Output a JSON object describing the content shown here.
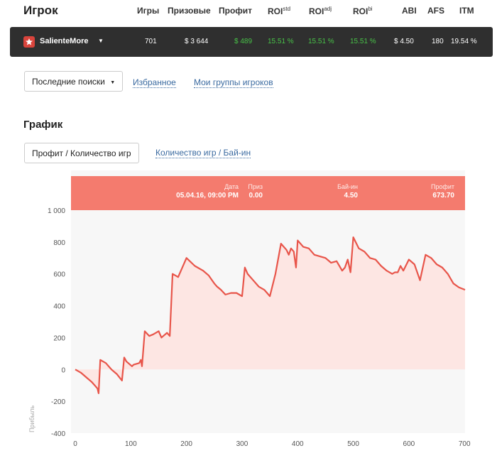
{
  "header": {
    "title": "Игрок",
    "columns": [
      {
        "label": "Игры",
        "sup": ""
      },
      {
        "label": "Призовые",
        "sup": ""
      },
      {
        "label": "Профит",
        "sup": ""
      },
      {
        "label": "ROI",
        "sup": "std"
      },
      {
        "label": "ROI",
        "sup": "adj"
      },
      {
        "label": "ROI",
        "sup": "bi"
      },
      {
        "label": "ABI",
        "sup": ""
      },
      {
        "label": "AFS",
        "sup": ""
      },
      {
        "label": "ITM",
        "sup": ""
      }
    ]
  },
  "player": {
    "name": "SalienteMore",
    "games": "701",
    "winnings": "$ 3 644",
    "profit": "$ 489",
    "roi_std": "15.51 %",
    "roi_adj": "15.51 %",
    "roi_bi": "15.51 %",
    "abi": "$ 4.50",
    "afs": "180",
    "itm": "19.54 %",
    "accent": "#48c248"
  },
  "search_tabs": {
    "recent": "Последние поиски",
    "favorites": "Избранное",
    "groups": "Мои группы игроков"
  },
  "chart_section": {
    "title": "График",
    "tab_active": "Профит / Количество игр",
    "tab_other": "Количество игр / Бай-ин"
  },
  "tooltip": {
    "date_label": "Дата",
    "date_value": "05.04.16, 09:00 PM",
    "prize_label": "Приз",
    "prize_value": "0.00",
    "buyin_label": "Бай-ин",
    "buyin_value": "4.50",
    "profit_label": "Профит",
    "profit_value": "673.70",
    "color": "#f47b6e"
  },
  "chart_data": {
    "type": "area",
    "ylabel": "Прибыль",
    "xlim": [
      0,
      701
    ],
    "ylim": [
      -400,
      1000
    ],
    "x_ticks": [
      0,
      100,
      200,
      300,
      400,
      500,
      600,
      700
    ],
    "y_ticks": [
      -400,
      -200,
      0,
      200,
      400,
      600,
      800,
      1000
    ],
    "y_tick_labels": [
      "-400",
      "-200",
      "0",
      "200",
      "400",
      "600",
      "800",
      "1 000"
    ],
    "line_color": "#e8554a",
    "fill_color": "#fde6e3",
    "x": [
      0,
      10,
      20,
      30,
      40,
      42,
      45,
      55,
      65,
      75,
      84,
      88,
      92,
      102,
      105,
      115,
      118,
      120,
      125,
      133,
      140,
      150,
      155,
      165,
      170,
      175,
      185,
      200,
      215,
      230,
      240,
      250,
      255,
      262,
      270,
      280,
      290,
      300,
      305,
      310,
      320,
      330,
      340,
      350,
      360,
      370,
      380,
      384,
      388,
      393,
      397,
      400,
      410,
      420,
      430,
      440,
      450,
      460,
      470,
      480,
      485,
      490,
      495,
      500,
      510,
      520,
      530,
      540,
      550,
      560,
      570,
      575,
      580,
      585,
      590,
      600,
      610,
      620,
      630,
      640,
      650,
      660,
      670,
      680,
      690,
      701
    ],
    "y": [
      0,
      -20,
      -50,
      -80,
      -120,
      -150,
      60,
      40,
      0,
      -30,
      -70,
      75,
      50,
      20,
      30,
      40,
      60,
      20,
      240,
      210,
      220,
      240,
      200,
      230,
      210,
      600,
      580,
      700,
      650,
      620,
      590,
      540,
      520,
      500,
      470,
      480,
      480,
      460,
      640,
      600,
      560,
      520,
      500,
      460,
      600,
      790,
      750,
      720,
      760,
      740,
      640,
      810,
      770,
      760,
      720,
      710,
      700,
      670,
      680,
      620,
      640,
      690,
      610,
      830,
      760,
      740,
      700,
      690,
      650,
      620,
      600,
      610,
      610,
      650,
      620,
      690,
      660,
      560,
      720,
      700,
      660,
      640,
      600,
      540,
      515,
      500
    ]
  }
}
